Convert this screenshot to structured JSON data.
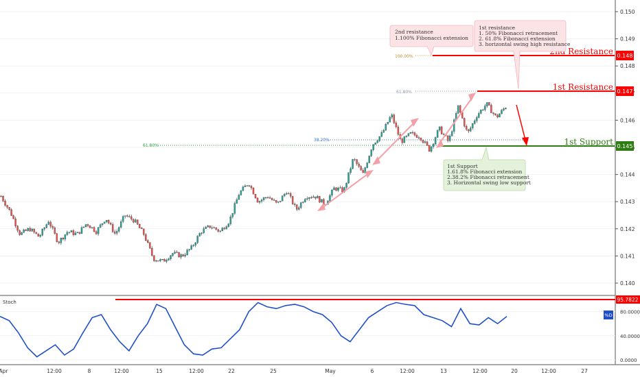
{
  "chart_data": [
    {
      "type": "candlestick",
      "panel": "price",
      "y_axis": {
        "ticks": [
          "0.150",
          "0.149",
          "0.148",
          "0.147",
          "0.146",
          "0.145",
          "0.144",
          "0.143",
          "0.142",
          "0.141",
          "0.140"
        ],
        "range": [
          0.1396,
          0.1505
        ],
        "tick_values": [
          0.15,
          0.149,
          0.148,
          0.147,
          0.146,
          0.145,
          0.144,
          0.143,
          0.142,
          0.141,
          0.14
        ]
      },
      "price_path": [
        0.1432,
        0.1426,
        0.1418,
        0.142,
        0.1417,
        0.1423,
        0.1415,
        0.1419,
        0.1418,
        0.1422,
        0.1419,
        0.1424,
        0.1418,
        0.1425,
        0.1423,
        0.1418,
        0.1409,
        0.1408,
        0.1411,
        0.141,
        0.1413,
        0.1419,
        0.1421,
        0.1419,
        0.1423,
        0.1433,
        0.1437,
        0.143,
        0.1432,
        0.1429,
        0.1434,
        0.1427,
        0.1432,
        0.1432,
        0.1429,
        0.1435,
        0.1434,
        0.1446,
        0.144,
        0.1451,
        0.1455,
        0.1462,
        0.1452,
        0.1455,
        0.1454,
        0.1449,
        0.1457,
        0.1452,
        0.1465,
        0.1455,
        0.1462,
        0.1466,
        0.1461,
        0.1465
      ],
      "levels": [
        {
          "label": "2nd Resistance",
          "value": "0.148",
          "color": "#ff0000"
        },
        {
          "label": "1st Resistance",
          "value": "0.147",
          "color": "#ff0000"
        },
        {
          "label": "1st Support",
          "value": "0.145",
          "color": "#2e7d12"
        }
      ],
      "fib_labels": [
        "100.00%",
        "61.80%",
        "38.20%",
        "61.80%"
      ],
      "annotations": [
        {
          "title": "2nd resistance",
          "lines": [
            "1.100% Fibonacci extension"
          ]
        },
        {
          "title": "1st resistance",
          "lines": [
            "1. 50% Fibonacci retracement",
            "2. 61.8% Fibonacci extension",
            "3. horizontal swing high resistance"
          ]
        },
        {
          "title": "1st Support",
          "lines": [
            "1.61.8% Fibonacci extension",
            "2.38.2% Fibonacci retracement",
            "3. Horizontal swing low support"
          ]
        }
      ]
    },
    {
      "type": "line",
      "panel": "stochastic",
      "title": "Stoch",
      "series": [
        {
          "name": "%D",
          "values": [
            72,
            65,
            45,
            20,
            5,
            15,
            25,
            8,
            18,
            45,
            70,
            75,
            50,
            30,
            15,
            40,
            60,
            92,
            85,
            55,
            25,
            10,
            8,
            18,
            20,
            35,
            50,
            80,
            95,
            88,
            85,
            90,
            92,
            88,
            80,
            75,
            62,
            40,
            30,
            50,
            70,
            80,
            90,
            95,
            92,
            90,
            75,
            70,
            65,
            55,
            85,
            60,
            58,
            70,
            60,
            72
          ],
          "color": "#1f4fc8"
        }
      ],
      "y_axis": {
        "ticks": [
          "80.0000",
          "40.0000",
          "0.0000"
        ],
        "range": [
          0,
          100
        ]
      },
      "level": {
        "value": "95.7822",
        "color": "#ff0000"
      }
    }
  ],
  "x_axis": {
    "ticks": [
      "Apr",
      "12:00",
      "8",
      "12:00",
      "15",
      "12:00",
      "22",
      "25",
      "May",
      "6",
      "12:00",
      "13",
      "12:00",
      "20",
      "12:00",
      "27"
    ]
  },
  "colors": {
    "up": "#26a69a",
    "down": "#ef5350",
    "resistance": "#ff0000",
    "support": "#2e7d12",
    "stoch": "#1f4fc8",
    "arrow": "#f4a0a8"
  }
}
